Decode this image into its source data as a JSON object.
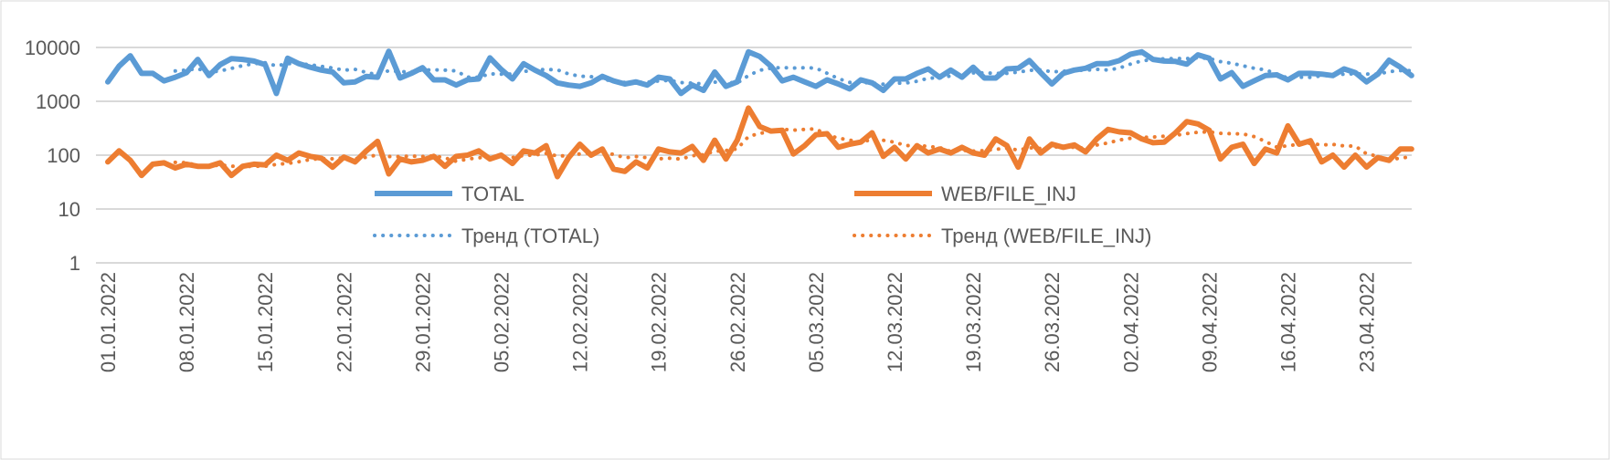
{
  "chart_data": {
    "type": "line",
    "title": "",
    "xlabel": "",
    "ylabel": "",
    "yscale": "log",
    "ylim": [
      1,
      10000
    ],
    "y_ticks": [
      "1",
      "10",
      "100",
      "1000",
      "10000"
    ],
    "grid": true,
    "legend_placement": "middle",
    "start_date": "01.01.2022",
    "x_tick_labels": [
      "01.01.2022",
      "08.01.2022",
      "15.01.2022",
      "22.01.2022",
      "29.01.2022",
      "05.02.2022",
      "12.02.2022",
      "19.02.2022",
      "26.02.2022",
      "05.03.2022",
      "12.03.2022",
      "19.03.2022",
      "26.03.2022",
      "02.04.2022",
      "09.04.2022",
      "16.04.2022",
      "23.04.2022"
    ],
    "series": [
      {
        "name": "TOTAL",
        "color": "#5b9bd5",
        "style": "solid",
        "values": [
          2300,
          4500,
          7000,
          3300,
          3300,
          2400,
          2800,
          3400,
          6000,
          3000,
          4800,
          6200,
          6000,
          5600,
          4800,
          1400,
          6300,
          5000,
          4300,
          3800,
          3500,
          2200,
          2300,
          2900,
          2800,
          8500,
          2700,
          3300,
          4200,
          2500,
          2500,
          2000,
          2500,
          2600,
          6400,
          3900,
          2600,
          5000,
          3800,
          3000,
          2200,
          2000,
          1900,
          2200,
          2900,
          2400,
          2100,
          2300,
          2000,
          2800,
          2600,
          1400,
          2000,
          1600,
          3500,
          1900,
          2300,
          8300,
          6800,
          4500,
          2400,
          2800,
          2300,
          1900,
          2500,
          2100,
          1700,
          2500,
          2200,
          1600,
          2600,
          2600,
          3300,
          4000,
          2800,
          3800,
          2800,
          4300,
          2700,
          2700,
          4000,
          4100,
          5700,
          3400,
          2100,
          3300,
          3800,
          4100,
          5000,
          5000,
          5700,
          7500,
          8300,
          6000,
          5600,
          5500,
          4900,
          7300,
          6300,
          2600,
          3400,
          1900,
          2400,
          3000,
          3100,
          2500,
          3300,
          3300,
          3200,
          3000,
          4000,
          3400,
          2300,
          3200,
          5800,
          4300,
          3000
        ]
      },
      {
        "name": "WEB/FILE_INJ",
        "color": "#ed7d31",
        "style": "solid",
        "values": [
          75,
          120,
          80,
          42,
          68,
          72,
          58,
          68,
          62,
          62,
          72,
          42,
          62,
          68,
          66,
          100,
          80,
          110,
          95,
          88,
          60,
          92,
          75,
          120,
          180,
          45,
          85,
          75,
          80,
          95,
          62,
          95,
          100,
          120,
          85,
          100,
          70,
          120,
          110,
          150,
          40,
          90,
          160,
          100,
          130,
          55,
          50,
          75,
          58,
          130,
          115,
          110,
          145,
          80,
          190,
          85,
          190,
          750,
          340,
          280,
          290,
          105,
          150,
          240,
          250,
          140,
          160,
          175,
          260,
          95,
          140,
          85,
          150,
          110,
          130,
          110,
          140,
          110,
          100,
          200,
          150,
          60,
          200,
          110,
          160,
          140,
          155,
          115,
          200,
          300,
          270,
          260,
          200,
          170,
          175,
          260,
          420,
          380,
          290,
          85,
          140,
          160,
          70,
          130,
          110,
          350,
          160,
          185,
          75,
          100,
          60,
          100,
          60,
          90,
          80,
          130,
          130
        ]
      },
      {
        "name": "Тренд (TOTAL)",
        "color": "#5b9bd5",
        "style": "dotted",
        "trend_of": "TOTAL",
        "trend": "moving_average",
        "period": 7
      },
      {
        "name": "Тренд (WEB/FILE_INJ)",
        "color": "#ed7d31",
        "style": "dotted",
        "trend_of": "WEB/FILE_INJ",
        "trend": "moving_average",
        "period": 7
      }
    ]
  }
}
